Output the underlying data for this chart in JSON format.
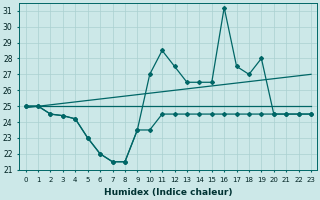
{
  "xlabel": "Humidex (Indice chaleur)",
  "xlim": [
    -0.5,
    23.5
  ],
  "ylim": [
    21,
    31.5
  ],
  "yticks": [
    21,
    22,
    23,
    24,
    25,
    26,
    27,
    28,
    29,
    30,
    31
  ],
  "xticks": [
    0,
    1,
    2,
    3,
    4,
    5,
    6,
    7,
    8,
    9,
    10,
    11,
    12,
    13,
    14,
    15,
    16,
    17,
    18,
    19,
    20,
    21,
    22,
    23
  ],
  "background_color": "#cce8e8",
  "grid_color": "#aad0d0",
  "line_color": "#006666",
  "series1_x": [
    0,
    1,
    2,
    3,
    4,
    5,
    6,
    7,
    8,
    9,
    10,
    11,
    12,
    13,
    14,
    15,
    16,
    17,
    18,
    19,
    20,
    21,
    22,
    23
  ],
  "series1_y": [
    25,
    25,
    24.5,
    24.4,
    24.2,
    23.0,
    22.0,
    21.5,
    21.5,
    23.5,
    23.5,
    24.5,
    24.5,
    24.5,
    24.5,
    24.5,
    24.5,
    24.5,
    24.5,
    24.5,
    24.5,
    24.5,
    24.5,
    24.5
  ],
  "series2_x": [
    0,
    1,
    2,
    3,
    4,
    5,
    6,
    7,
    8,
    9,
    10,
    11,
    12,
    13,
    14,
    15,
    16,
    17,
    18,
    19,
    20,
    21,
    22,
    23
  ],
  "series2_y": [
    25,
    25,
    24.5,
    24.4,
    24.2,
    23.0,
    22.0,
    21.5,
    21.5,
    23.5,
    27.0,
    28.5,
    27.5,
    26.5,
    26.5,
    26.5,
    31.2,
    27.5,
    27.0,
    28.0,
    24.5,
    24.5,
    24.5,
    24.5
  ],
  "line3_x": [
    0,
    23
  ],
  "line3_y": [
    25.0,
    25.0
  ],
  "line4_x": [
    0,
    23
  ],
  "line4_y": [
    24.9,
    27.0
  ]
}
